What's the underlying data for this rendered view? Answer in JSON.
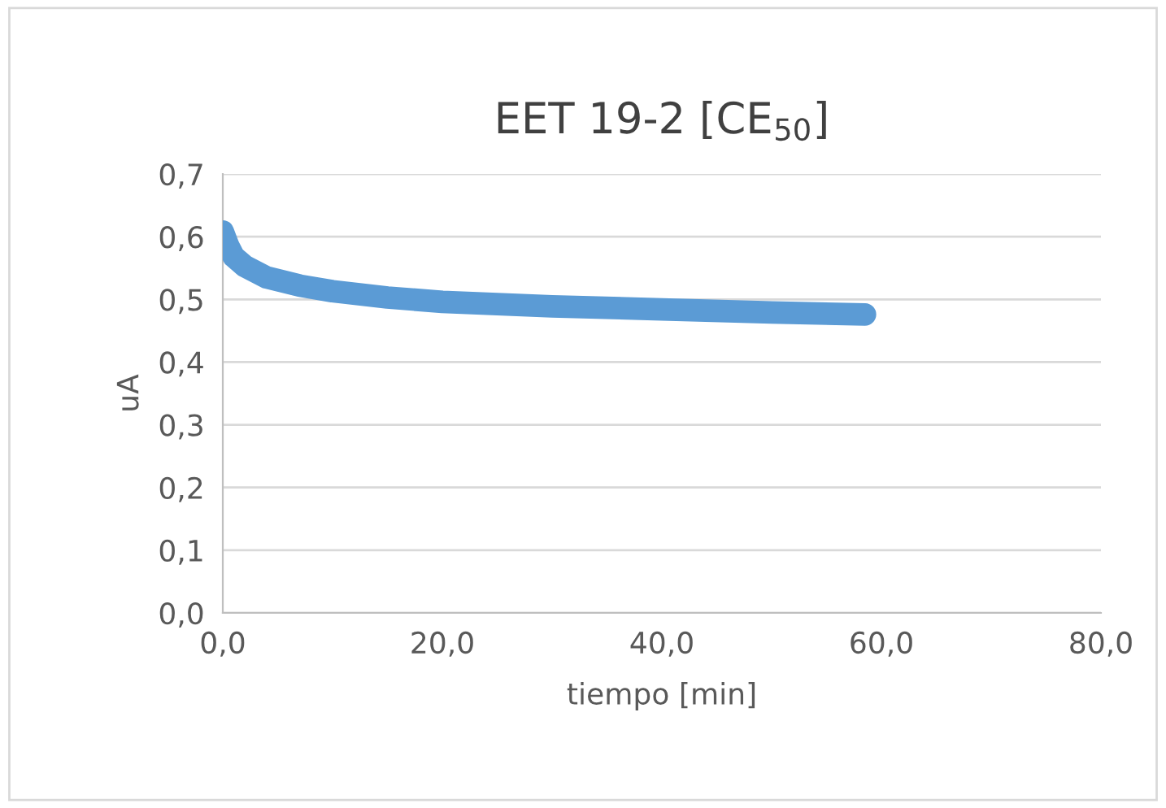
{
  "chart_data": {
    "type": "line",
    "title": "EET 19-2 [CE$_{50}$]",
    "xlabel": "tiempo [min]",
    "ylabel": "uA",
    "x": [
      0,
      0.5,
      1,
      2,
      4,
      7,
      10,
      15,
      20,
      30,
      40,
      50,
      58.5
    ],
    "series": [
      {
        "color": "#5b9bd5",
        "values": [
          0.608,
          0.585,
          0.568,
          0.553,
          0.535,
          0.522,
          0.513,
          0.503,
          0.496,
          0.489,
          0.484,
          0.479,
          0.476
        ]
      }
    ],
    "xlim": [
      0,
      80
    ],
    "xticks": [
      {
        "value": 0,
        "label": "0,0"
      },
      {
        "value": 20,
        "label": "20,0"
      },
      {
        "value": 40,
        "label": "40,0"
      },
      {
        "value": 60,
        "label": "60,0"
      },
      {
        "value": 80,
        "label": "80,0"
      }
    ],
    "ylim": [
      0,
      0.7
    ],
    "yticks": [
      {
        "value": 0,
        "label": "0,0"
      },
      {
        "value": 0.1,
        "label": "0,1"
      },
      {
        "value": 0.2,
        "label": "0,2"
      },
      {
        "value": 0.3,
        "label": "0,3"
      },
      {
        "value": 0.4,
        "label": "0,4"
      },
      {
        "value": 0.5,
        "label": "0,5"
      },
      {
        "value": 0.6,
        "label": "0,6"
      },
      {
        "value": 0.7,
        "label": "0,7"
      }
    ],
    "grid": "y",
    "legend": false,
    "line_style": "solid"
  }
}
